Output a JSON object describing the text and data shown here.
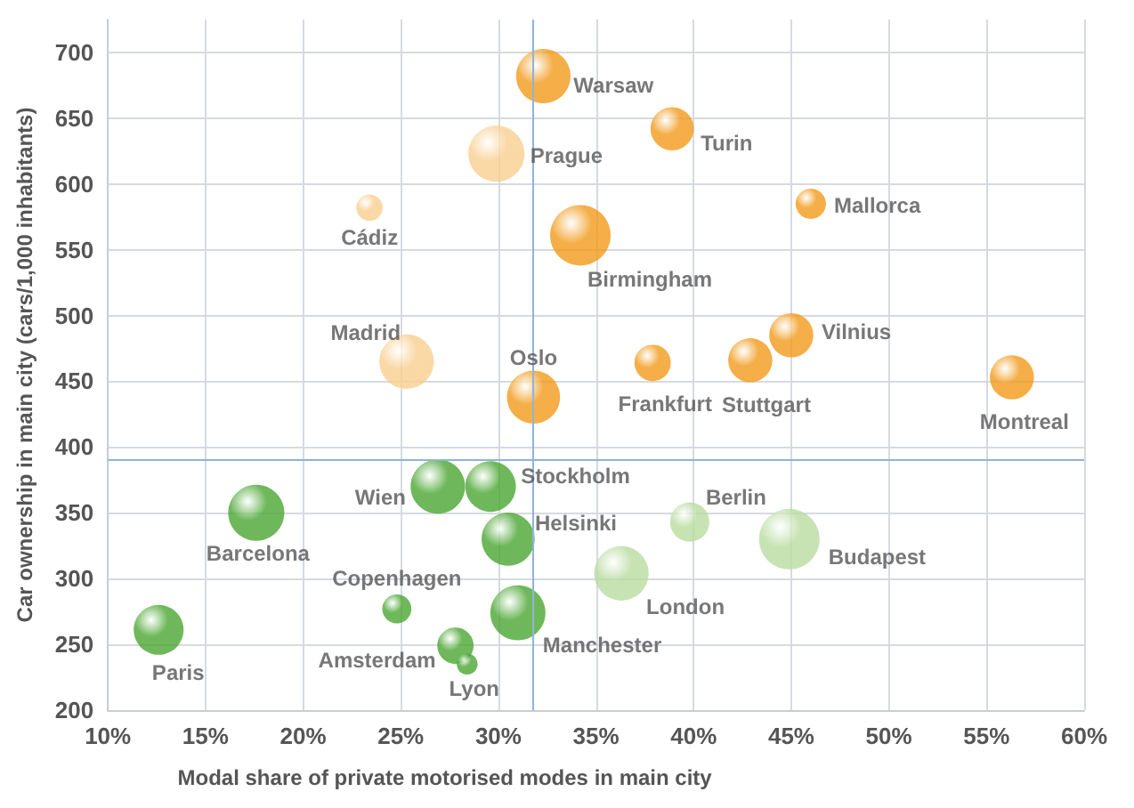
{
  "chart_data": {
    "type": "bubble",
    "xlabel": "Modal share of private motorised modes in main city",
    "ylabel": "Car ownership in main city (cars/1,000 inhabitants)",
    "x": [
      32.3,
      38.9,
      29.9,
      23.4,
      46.0,
      34.2,
      25.3,
      31.8,
      37.9,
      42.9,
      45.0,
      56.3,
      26.9,
      29.6,
      39.8,
      17.6,
      30.5,
      44.9,
      36.3,
      24.8,
      31.0,
      27.8,
      28.4,
      12.6
    ],
    "values": [
      682,
      642,
      623,
      582,
      585,
      561,
      465,
      438,
      464,
      466,
      485,
      453,
      370,
      370,
      343,
      350,
      330,
      330,
      304,
      277,
      274,
      249,
      235,
      261
    ],
    "sizes": [
      0.81,
      0.51,
      0.86,
      0.19,
      0.25,
      1,
      0.81,
      0.77,
      0.36,
      0.53,
      0.53,
      0.53,
      0.81,
      0.7,
      0.42,
      0.86,
      0.77,
      1,
      0.81,
      0.23,
      0.83,
      0.36,
      0.12,
      0.68
    ],
    "colors": [
      "#f29a1a",
      "#f29a1a",
      "#f9cf90",
      "#f9cf90",
      "#f29a1a",
      "#f29a1a",
      "#f9cf90",
      "#f29a1a",
      "#f29a1a",
      "#f29a1a",
      "#f29a1a",
      "#f29a1a",
      "#4aa632",
      "#4aa632",
      "#b9dca0",
      "#4aa632",
      "#4aa632",
      "#b9dca0",
      "#b9dca0",
      "#4aa632",
      "#4aa632",
      "#4aa632",
      "#4aa632",
      "#4aa632"
    ],
    "annotations": [
      {
        "text": "Warsaw",
        "x": 32.3,
        "y": 682
      },
      {
        "text": "Turin",
        "x": 38.9,
        "y": 642
      },
      {
        "text": "Prague",
        "x": 29.9,
        "y": 623
      },
      {
        "text": "Cádiz",
        "x": 23.4,
        "y": 582
      },
      {
        "text": "Mallorca",
        "x": 46.0,
        "y": 585
      },
      {
        "text": "Birmingham",
        "x": 34.2,
        "y": 561
      },
      {
        "text": "Madrid",
        "x": 25.3,
        "y": 465
      },
      {
        "text": "Oslo",
        "x": 31.8,
        "y": 438
      },
      {
        "text": "Frankfurt",
        "x": 37.9,
        "y": 464
      },
      {
        "text": "Stuttgart",
        "x": 42.9,
        "y": 466
      },
      {
        "text": "Vilnius",
        "x": 45.0,
        "y": 485
      },
      {
        "text": "Montreal",
        "x": 56.3,
        "y": 453
      },
      {
        "text": "Wien",
        "x": 26.9,
        "y": 370
      },
      {
        "text": "Stockholm",
        "x": 29.6,
        "y": 370
      },
      {
        "text": "Berlin",
        "x": 39.8,
        "y": 343
      },
      {
        "text": "Barcelona",
        "x": 17.6,
        "y": 350
      },
      {
        "text": "Helsinki",
        "x": 30.5,
        "y": 330
      },
      {
        "text": "Budapest",
        "x": 44.9,
        "y": 330
      },
      {
        "text": "London",
        "x": 36.3,
        "y": 304
      },
      {
        "text": "Copenhagen",
        "x": 24.8,
        "y": 277
      },
      {
        "text": "Manchester",
        "x": 31.0,
        "y": 274
      },
      {
        "text": "Amsterdam",
        "x": 27.8,
        "y": 249
      },
      {
        "text": "Lyon",
        "x": 28.4,
        "y": 235
      },
      {
        "text": "Paris",
        "x": 12.6,
        "y": 261
      }
    ],
    "xlim": [
      10,
      60
    ],
    "xticks": [
      {
        "value": 10,
        "label": "10%"
      },
      {
        "value": 15,
        "label": "15%"
      },
      {
        "value": 20,
        "label": "20%"
      },
      {
        "value": 25,
        "label": "25%"
      },
      {
        "value": 30,
        "label": "30%"
      },
      {
        "value": 35,
        "label": "35%"
      },
      {
        "value": 40,
        "label": "40%"
      },
      {
        "value": 45,
        "label": "45%"
      },
      {
        "value": 50,
        "label": "50%"
      },
      {
        "value": 55,
        "label": "55%"
      },
      {
        "value": 60,
        "label": "60%"
      }
    ],
    "ylim": [
      200,
      725
    ],
    "yticks": [
      200,
      250,
      300,
      350,
      400,
      450,
      500,
      550,
      600,
      650,
      700
    ],
    "ref_lines": [
      {
        "axis": "x",
        "value": 31.8,
        "color": "#8fb4d8"
      },
      {
        "axis": "y",
        "value": 391,
        "color": "#8fb4d8"
      }
    ],
    "grid": true
  }
}
